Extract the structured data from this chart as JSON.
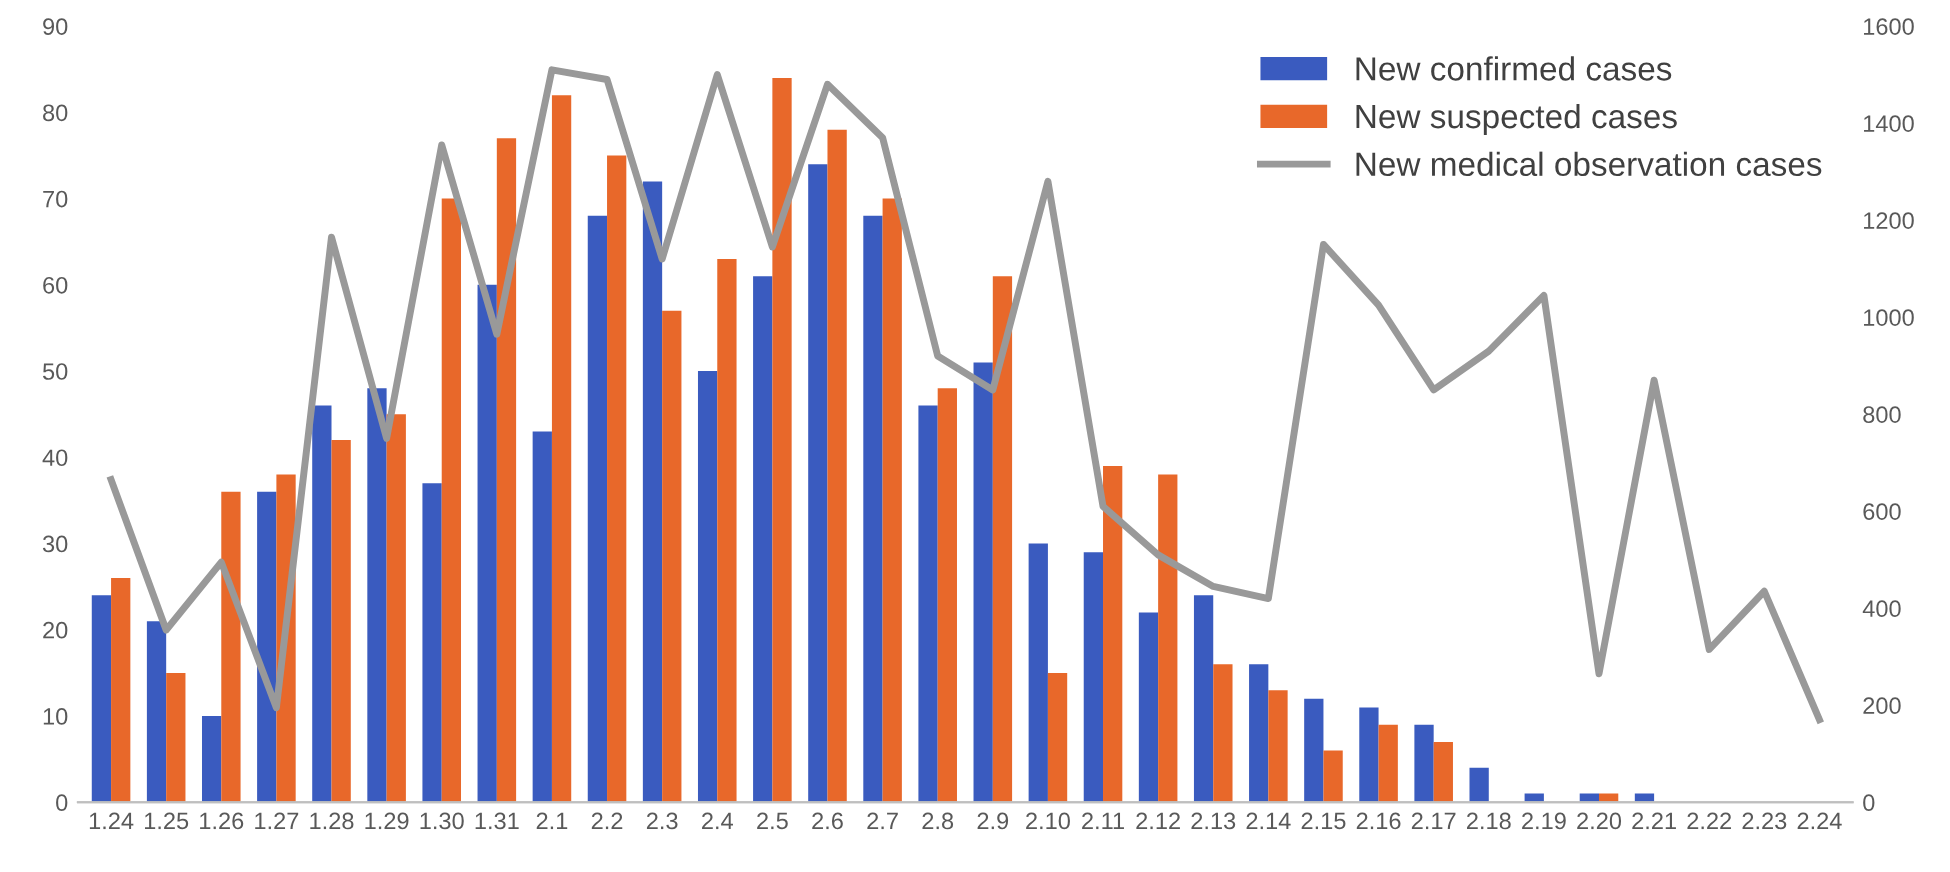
{
  "chart_data": {
    "type": "bar",
    "categories": [
      "1.24",
      "1.25",
      "1.26",
      "1.27",
      "1.28",
      "1.29",
      "1.30",
      "1.31",
      "2.1",
      "2.2",
      "2.3",
      "2.4",
      "2.5",
      "2.6",
      "2.7",
      "2.8",
      "2.9",
      "2.10",
      "2.11",
      "2.12",
      "2.13",
      "2.14",
      "2.15",
      "2.16",
      "2.17",
      "2.18",
      "2.19",
      "2.20",
      "2.21",
      "2.22",
      "2.23",
      "2.24"
    ],
    "series": [
      {
        "name": "New confirmed cases",
        "color": "#3a5bbf",
        "values": [
          24,
          21,
          10,
          36,
          46,
          48,
          37,
          60,
          43,
          68,
          72,
          50,
          61,
          74,
          68,
          46,
          51,
          30,
          29,
          22,
          24,
          16,
          12,
          11,
          9,
          4,
          1,
          1,
          1,
          0,
          0,
          0
        ]
      },
      {
        "name": "New suspected cases",
        "color": "#e8682a",
        "values": [
          26,
          15,
          36,
          38,
          42,
          45,
          70,
          77,
          82,
          75,
          57,
          63,
          84,
          78,
          70,
          48,
          61,
          15,
          39,
          38,
          16,
          13,
          6,
          9,
          7,
          0,
          0,
          1,
          0,
          0,
          0,
          0
        ]
      },
      {
        "name": "New medical observation cases",
        "type": "line",
        "axis": "y2",
        "color": "#999999",
        "values": [
          665,
          355,
          495,
          195,
          1165,
          750,
          1355,
          965,
          1510,
          1490,
          1120,
          1500,
          1145,
          1480,
          1370,
          920,
          850,
          1280,
          610,
          510,
          445,
          420,
          1150,
          1025,
          850,
          930,
          1045,
          265,
          870,
          315,
          435,
          170
        ]
      }
    ],
    "ylim": [
      0,
      90
    ],
    "yticks": [
      0,
      10,
      20,
      30,
      40,
      50,
      60,
      70,
      80,
      90
    ],
    "y2lim": [
      0,
      1600
    ],
    "y2ticks": [
      0,
      200,
      400,
      600,
      800,
      1000,
      1200,
      1400,
      1600
    ],
    "grid": false,
    "legend": "top right",
    "marker": "none",
    "line_style": "solid"
  }
}
